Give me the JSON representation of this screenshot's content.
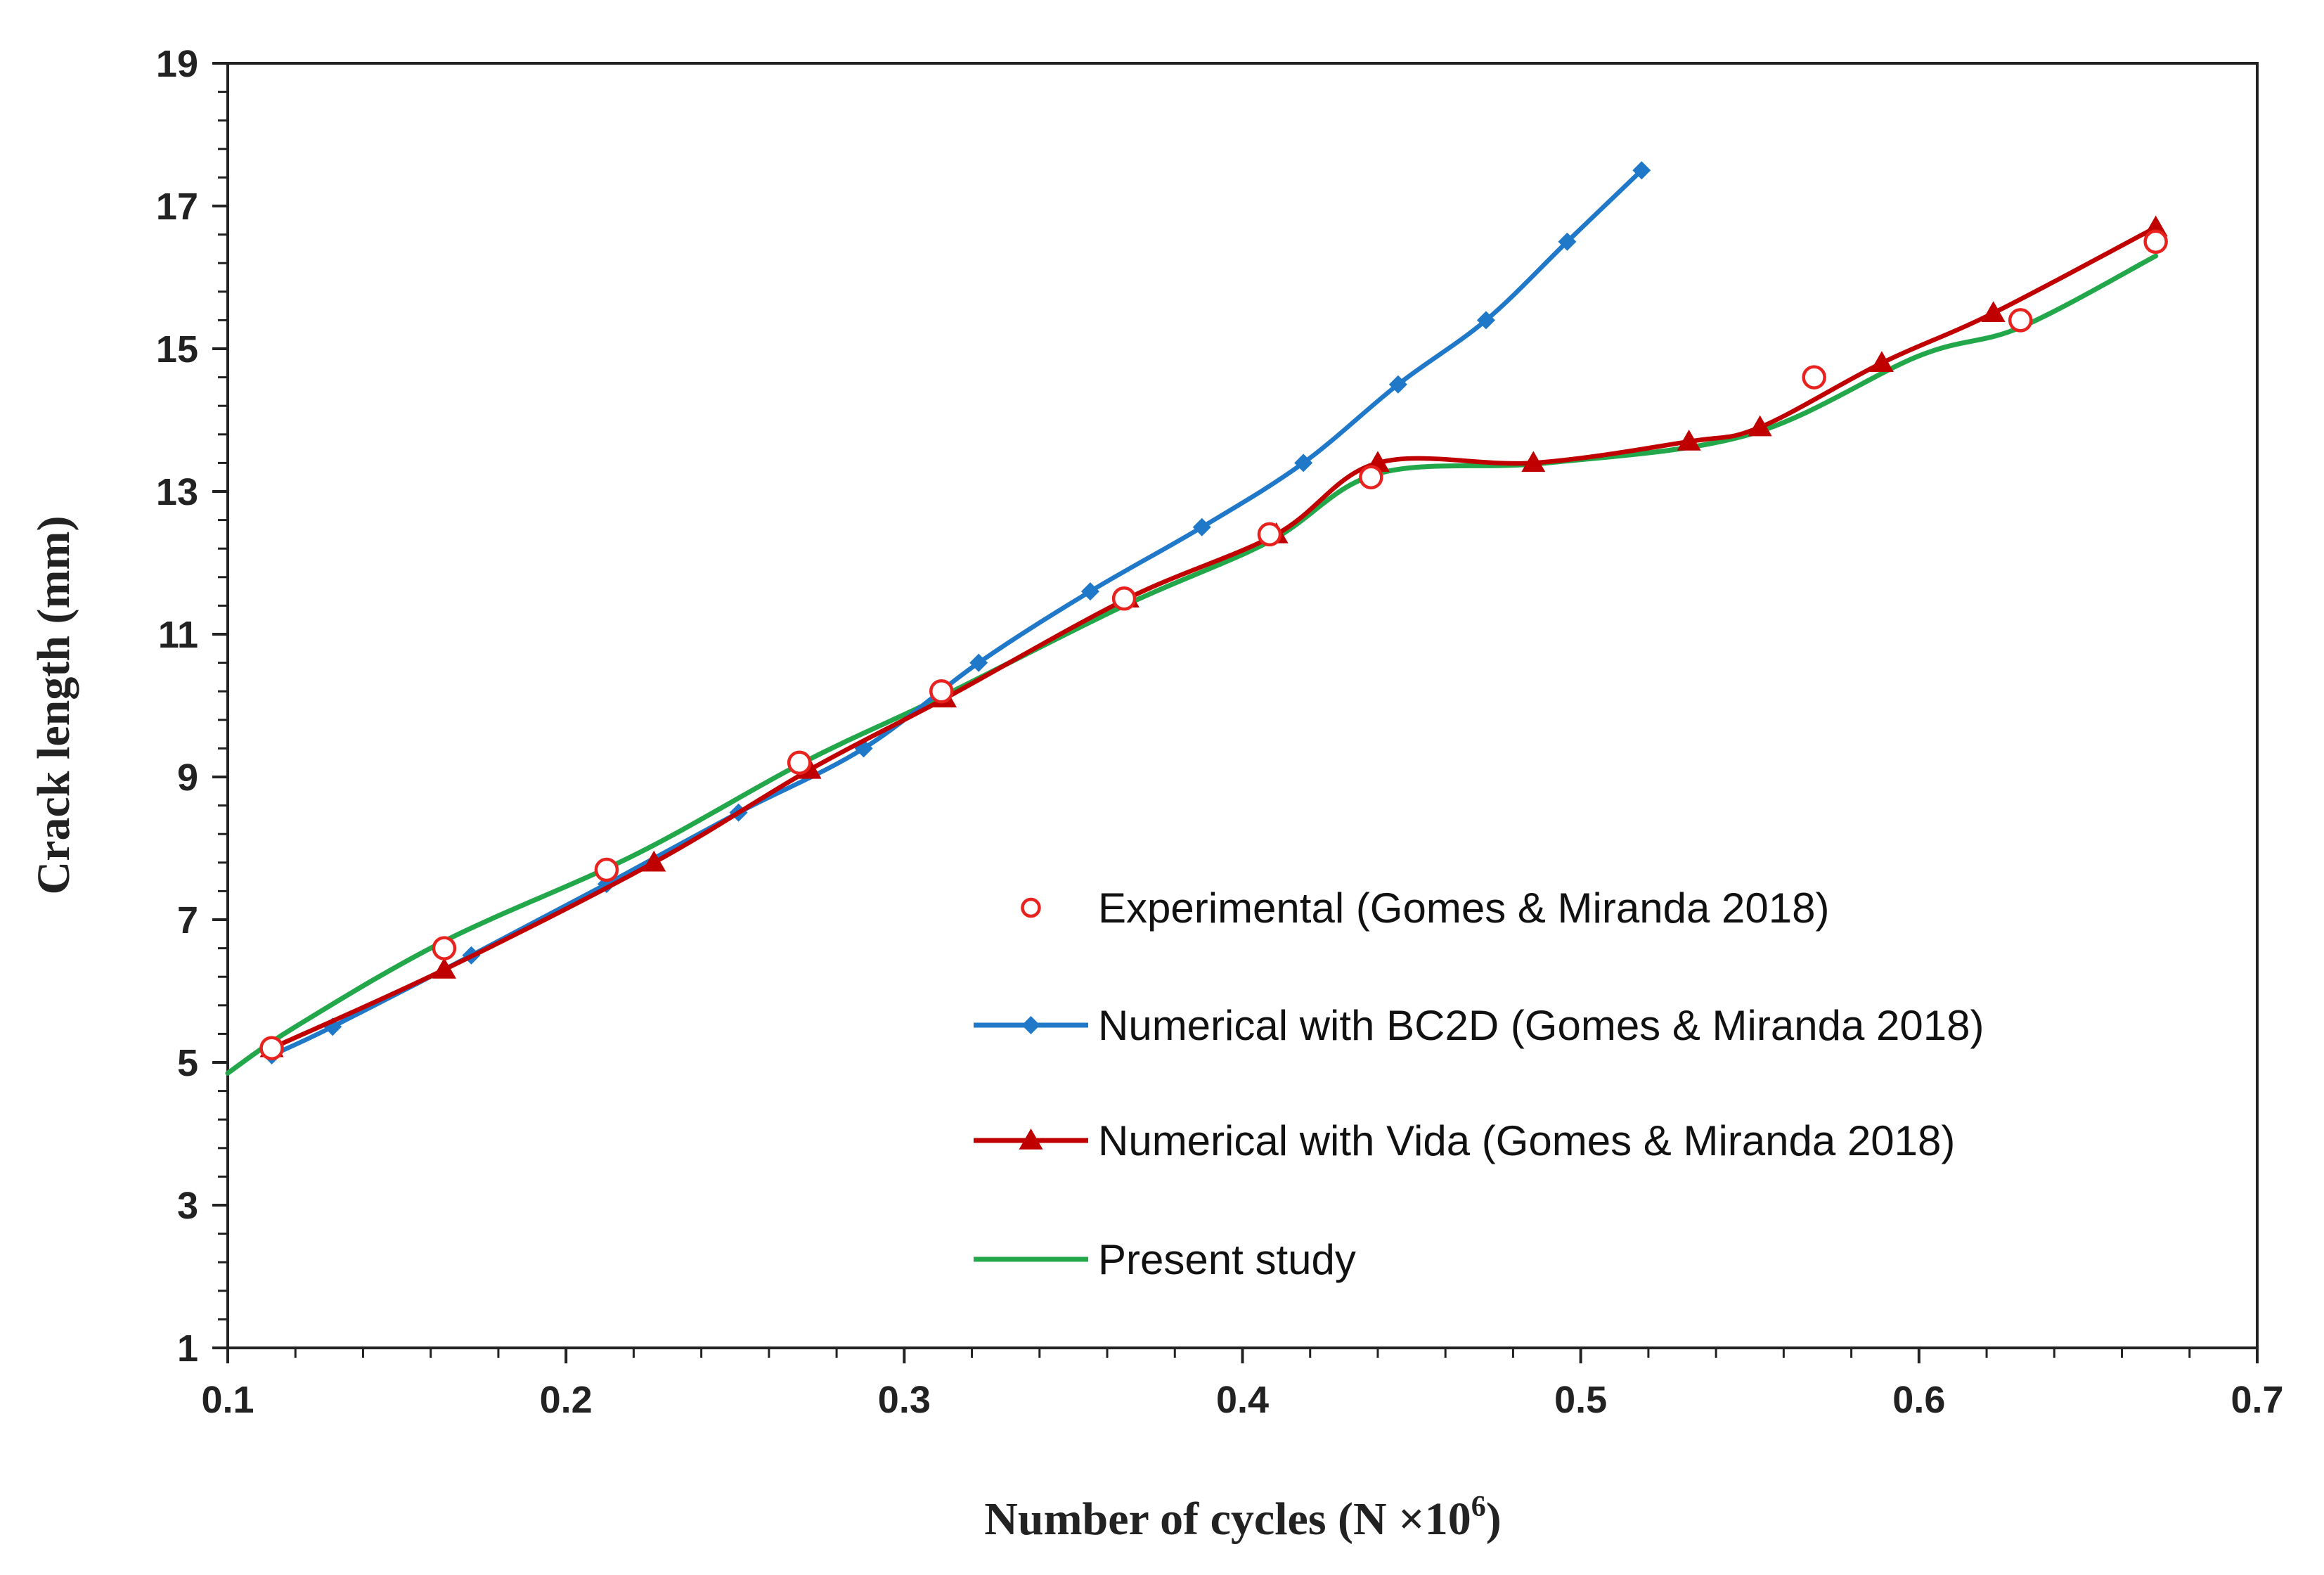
{
  "chart_data": {
    "type": "line",
    "title": "",
    "xlabel": "Number of cycles (N ×10",
    "xlabel_sup": "6",
    "xlabel_end": ")",
    "ylabel": "Crack length (mm)",
    "xlim": [
      0.1,
      0.7
    ],
    "ylim": [
      1,
      19
    ],
    "x_ticks": [
      0.1,
      0.2,
      0.3,
      0.4,
      0.5,
      0.6,
      0.7
    ],
    "x_tick_labels": [
      "0.1",
      "0.2",
      "0.3",
      "0.4",
      "0.5",
      "0.6",
      "0.7"
    ],
    "y_ticks": [
      1,
      3,
      5,
      7,
      9,
      11,
      13,
      15,
      17,
      19
    ],
    "y_tick_labels": [
      "1",
      "3",
      "5",
      "7",
      "9",
      "11",
      "13",
      "15",
      "17",
      "19"
    ],
    "legend_position": "center-right",
    "series": [
      {
        "name": "Experimental (Gomes & Miranda 2018)",
        "style": "markers",
        "marker": "open-circle",
        "color": "#e8231f",
        "x": [
          0.113,
          0.164,
          0.212,
          0.269,
          0.311,
          0.365,
          0.408,
          0.438,
          0.569,
          0.63,
          0.67
        ],
        "y": [
          5.2,
          6.6,
          7.7,
          9.2,
          10.2,
          11.5,
          12.4,
          13.2,
          14.6,
          15.4,
          16.5
        ]
      },
      {
        "name": "Numerical with BC2D (Gomes & Miranda 2018)",
        "style": "line-markers",
        "marker": "diamond",
        "color": "#1f78c8",
        "x": [
          0.113,
          0.131,
          0.172,
          0.212,
          0.251,
          0.288,
          0.322,
          0.355,
          0.388,
          0.418,
          0.446,
          0.472,
          0.496,
          0.518
        ],
        "y": [
          5.1,
          5.5,
          6.5,
          7.5,
          8.5,
          9.4,
          10.6,
          11.6,
          12.5,
          13.4,
          14.5,
          15.4,
          16.5,
          17.5
        ]
      },
      {
        "name": "Numerical with Vida (Gomes & Miranda 2018)",
        "style": "line-markers",
        "marker": "triangle",
        "color": "#c00000",
        "x": [
          0.113,
          0.164,
          0.226,
          0.272,
          0.312,
          0.366,
          0.41,
          0.44,
          0.486,
          0.532,
          0.553,
          0.589,
          0.622,
          0.67
        ],
        "y": [
          5.2,
          6.3,
          7.8,
          9.1,
          10.1,
          11.5,
          12.4,
          13.4,
          13.4,
          13.7,
          13.9,
          14.8,
          15.5,
          16.7
        ]
      },
      {
        "name": "Present study",
        "style": "line",
        "marker": "none",
        "color": "#22a84a",
        "x": [
          0.1,
          0.12,
          0.164,
          0.22,
          0.27,
          0.31,
          0.365,
          0.408,
          0.44,
          0.49,
          0.55,
          0.6,
          0.63,
          0.67
        ],
        "y": [
          4.85,
          5.5,
          6.7,
          7.9,
          9.2,
          10.1,
          11.4,
          12.3,
          13.25,
          13.4,
          13.8,
          14.9,
          15.3,
          16.3
        ]
      }
    ]
  }
}
